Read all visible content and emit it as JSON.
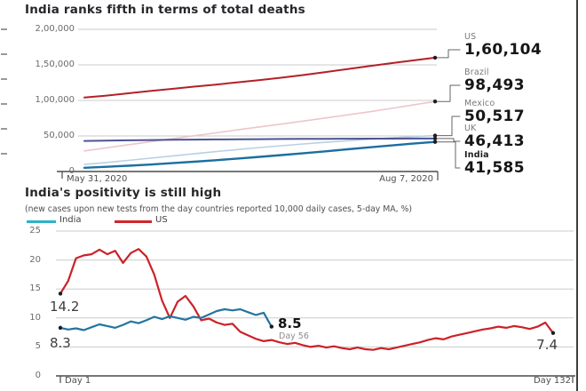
{
  "charts": [
    {
      "title": "India ranks fifth in terms of total deaths",
      "chart_data": {
        "type": "line",
        "x_start_label": "May 31, 2020",
        "x_end_label": "Aug 7, 2020",
        "y_ticks": [
          "2,00,000",
          "1,50,000",
          "1,00,000",
          "50,000",
          "0"
        ],
        "ylim": [
          0,
          200000
        ],
        "grid": "horizontal",
        "series": [
          {
            "name": "US",
            "color": "#b32026",
            "width": 2,
            "end_value_label": "1,60,104",
            "values": [
              104000,
              106800,
              110000,
              113200,
              116200,
              119400,
              122300,
              125500,
              128600,
              132000,
              135800,
              139900,
              144100,
              148300,
              152400,
              156200,
              160104
            ]
          },
          {
            "name": "Brazil",
            "color": "#eec5cb",
            "width": 1.6,
            "end_value_label": "98,493",
            "values": [
              29000,
              33300,
              37600,
              41800,
              46000,
              50200,
              54400,
              58600,
              62700,
              66800,
              71000,
              75300,
              79600,
              84000,
              88700,
              93600,
              98493
            ]
          },
          {
            "name": "Mexico",
            "color": "#bad0e4",
            "width": 1.6,
            "end_value_label": "50,517",
            "values": [
              9900,
              12600,
              15600,
              18700,
              21800,
              24900,
              28000,
              30900,
              33700,
              36300,
              38800,
              41100,
              43300,
              45400,
              47300,
              49000,
              50517
            ]
          },
          {
            "name": "UK",
            "color": "#4c5492",
            "width": 2,
            "end_value_label": "46,413",
            "values": [
              43000,
              43500,
              43900,
              44300,
              44600,
              44900,
              45100,
              45300,
              45500,
              45700,
              45850,
              46000,
              46100,
              46200,
              46280,
              46350,
              46413
            ]
          },
          {
            "name": "India",
            "color": "#1b6fa0",
            "width": 2.4,
            "end_value_label": "41,585",
            "values": [
              5200,
              6600,
              8100,
              9800,
              11700,
              13700,
              15900,
              18200,
              20600,
              23100,
              25700,
              28400,
              31200,
              34000,
              36600,
              39200,
              41585
            ]
          }
        ]
      }
    },
    {
      "title": "India's positivity is still high",
      "subtitle": "(new cases upon new tests from the day countries reported 10,000 daily cases, 5-day MA, %)",
      "legend": [
        {
          "label": "India",
          "color": "#2bb3c8"
        },
        {
          "label": "US",
          "color": "#d0252d"
        }
      ],
      "chart_data": {
        "type": "line",
        "x_start_label": "Day 1",
        "x_end_label": "Day 132",
        "x_range_days": [
          1,
          132
        ],
        "y_ticks": [
          "25",
          "20",
          "15",
          "10",
          "5",
          "0"
        ],
        "ylim": [
          0,
          25
        ],
        "grid": "horizontal",
        "series": [
          {
            "name": "US",
            "color": "#cc2128",
            "width": 2.2,
            "start_day": 1,
            "day_step": 2,
            "start_annotation": "14.2",
            "end_annotation": "7.4",
            "values": [
              14.2,
              16.4,
              20.3,
              20.8,
              21.0,
              21.8,
              21.0,
              21.6,
              19.5,
              21.2,
              21.9,
              20.6,
              17.5,
              13.0,
              10.0,
              12.8,
              13.8,
              12.0,
              9.6,
              9.9,
              9.2,
              8.8,
              9.0,
              7.6,
              7.0,
              6.4,
              6.0,
              6.2,
              5.8,
              5.5,
              5.7,
              5.3,
              5.0,
              5.2,
              4.9,
              5.1,
              4.8,
              4.6,
              4.9,
              4.6,
              4.5,
              4.8,
              4.6,
              4.9,
              5.2,
              5.5,
              5.8,
              6.2,
              6.5,
              6.3,
              6.8,
              7.1,
              7.4,
              7.7,
              8.0,
              8.2,
              8.5,
              8.3,
              8.6,
              8.4,
              8.1,
              8.5,
              9.2,
              7.4
            ]
          },
          {
            "name": "India",
            "color": "#2374a0",
            "width": 2.2,
            "start_day": 1,
            "day_step": 2,
            "start_annotation": "8.3",
            "end_annotation": "8.5",
            "end_annotation_sub": "Day 56",
            "values": [
              8.3,
              8.0,
              8.2,
              7.9,
              8.4,
              8.9,
              8.6,
              8.3,
              8.8,
              9.4,
              9.1,
              9.6,
              10.2,
              9.8,
              10.3,
              10.0,
              9.7,
              10.2,
              10.0,
              10.6,
              11.2,
              11.5,
              11.3,
              11.5,
              11.0,
              10.5,
              10.9,
              8.5
            ]
          }
        ]
      }
    }
  ],
  "colors": {
    "gridline": "#cbcbcb",
    "axis": "#4a4a4a",
    "connector": "#666666",
    "dot": "#1d1d1d",
    "right_border": "#3c3c3c"
  }
}
